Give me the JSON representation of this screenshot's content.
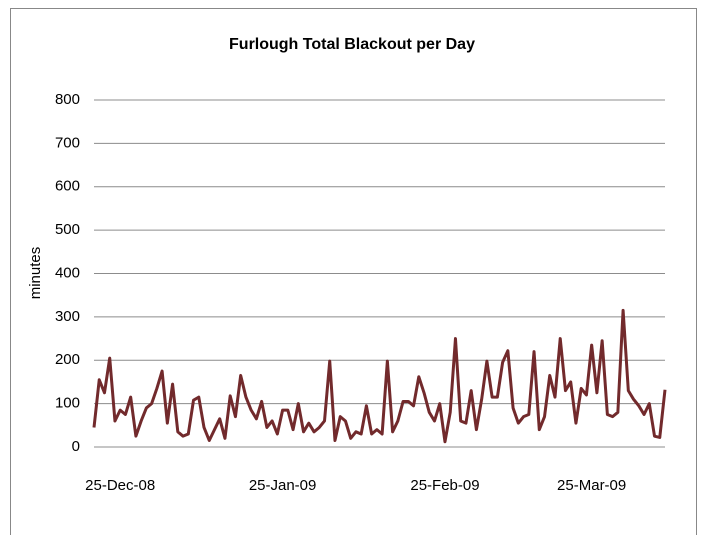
{
  "chart_data": {
    "type": "line",
    "title": "Furlough Total Blackout per Day",
    "y_label": "minutes",
    "x": [
      "2008-12-20",
      "2008-12-21",
      "2008-12-22",
      "2008-12-23",
      "2008-12-24",
      "2008-12-25",
      "2008-12-26",
      "2008-12-27",
      "2008-12-28",
      "2008-12-29",
      "2008-12-30",
      "2008-12-31",
      "2009-01-01",
      "2009-01-02",
      "2009-01-03",
      "2009-01-04",
      "2009-01-05",
      "2009-01-06",
      "2009-01-07",
      "2009-01-08",
      "2009-01-09",
      "2009-01-10",
      "2009-01-11",
      "2009-01-12",
      "2009-01-13",
      "2009-01-14",
      "2009-01-15",
      "2009-01-16",
      "2009-01-17",
      "2009-01-18",
      "2009-01-19",
      "2009-01-20",
      "2009-01-21",
      "2009-01-22",
      "2009-01-23",
      "2009-01-24",
      "2009-01-25",
      "2009-01-26",
      "2009-01-27",
      "2009-01-28",
      "2009-01-29",
      "2009-01-30",
      "2009-01-31",
      "2009-02-01",
      "2009-02-02",
      "2009-02-03",
      "2009-02-04",
      "2009-02-05",
      "2009-02-06",
      "2009-02-07",
      "2009-02-08",
      "2009-02-09",
      "2009-02-10",
      "2009-02-11",
      "2009-02-12",
      "2009-02-13",
      "2009-02-14",
      "2009-02-15",
      "2009-02-16",
      "2009-02-17",
      "2009-02-18",
      "2009-02-19",
      "2009-02-20",
      "2009-02-21",
      "2009-02-22",
      "2009-02-23",
      "2009-02-24",
      "2009-02-25",
      "2009-02-26",
      "2009-02-27",
      "2009-02-28",
      "2009-03-01",
      "2009-03-02",
      "2009-03-03",
      "2009-03-04",
      "2009-03-05",
      "2009-03-06",
      "2009-03-07",
      "2009-03-08",
      "2009-03-09",
      "2009-03-10",
      "2009-03-11",
      "2009-03-12",
      "2009-03-13",
      "2009-03-14",
      "2009-03-15",
      "2009-03-16",
      "2009-03-17",
      "2009-03-18",
      "2009-03-19",
      "2009-03-20",
      "2009-03-21",
      "2009-03-22",
      "2009-03-23",
      "2009-03-24",
      "2009-03-25",
      "2009-03-26",
      "2009-03-27",
      "2009-03-28",
      "2009-03-29",
      "2009-03-30",
      "2009-03-31",
      "2009-04-01",
      "2009-04-02",
      "2009-04-03",
      "2009-04-04",
      "2009-04-05",
      "2009-04-06",
      "2009-04-07",
      "2009-04-08"
    ],
    "series": [
      {
        "name": "minutes",
        "color": "#722a2c",
        "values": [
          45,
          155,
          125,
          205,
          60,
          85,
          75,
          115,
          25,
          60,
          90,
          100,
          135,
          175,
          55,
          145,
          35,
          25,
          30,
          108,
          115,
          45,
          15,
          40,
          65,
          20,
          118,
          70,
          165,
          115,
          85,
          65,
          105,
          45,
          60,
          30,
          85,
          85,
          40,
          100,
          35,
          55,
          35,
          45,
          60,
          198,
          15,
          70,
          60,
          20,
          35,
          30,
          95,
          30,
          40,
          30,
          198,
          35,
          60,
          105,
          105,
          95,
          162,
          125,
          80,
          60,
          100,
          12,
          80,
          250,
          60,
          55,
          130,
          40,
          110,
          198,
          115,
          115,
          195,
          222,
          90,
          55,
          70,
          75,
          220,
          40,
          70,
          165,
          115,
          250,
          130,
          150,
          55,
          135,
          120,
          235,
          125,
          245,
          75,
          70,
          80,
          315,
          130,
          110,
          95,
          75,
          100,
          25,
          22,
          132
        ]
      }
    ],
    "xlim": [
      "2008-12-20",
      "2009-04-08"
    ],
    "xticks": [
      {
        "value": "2008-12-25",
        "label": "25-Dec-08"
      },
      {
        "value": "2009-01-25",
        "label": "25-Jan-09"
      },
      {
        "value": "2009-02-25",
        "label": "25-Feb-09"
      },
      {
        "value": "2009-03-25",
        "label": "25-Mar-09"
      }
    ],
    "ylim": [
      0,
      800
    ],
    "yticks": [
      0,
      100,
      200,
      300,
      400,
      500,
      600,
      700,
      800
    ],
    "grid": true
  }
}
